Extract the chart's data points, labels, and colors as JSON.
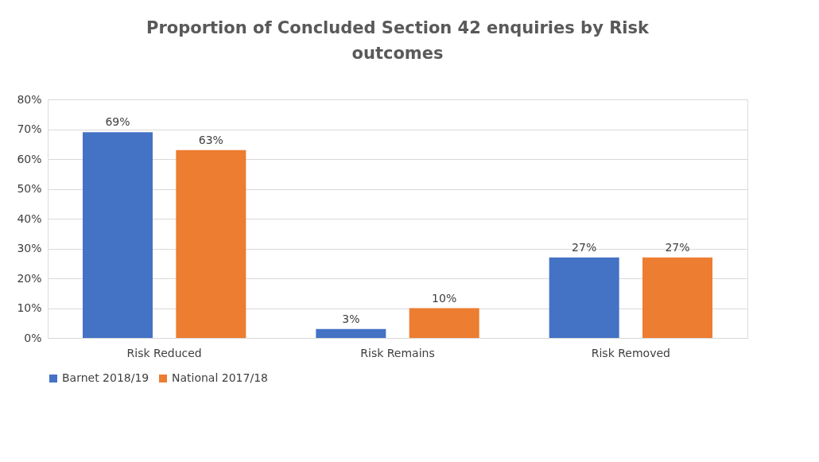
{
  "chart_data": {
    "type": "bar",
    "title": "Proportion of Concluded Section 42 enquiries by Risk outcomes",
    "categories": [
      "Risk Reduced",
      "Risk Remains",
      "Risk Removed"
    ],
    "series": [
      {
        "name": "Barnet 2018/19",
        "color": "#4472c4",
        "values": [
          69,
          3,
          27
        ],
        "value_labels": [
          "69%",
          "3%",
          "27%"
        ]
      },
      {
        "name": "National 2017/18",
        "color": "#ed7d31",
        "values": [
          63,
          10,
          27
        ],
        "value_labels": [
          "63%",
          "10%",
          "27%"
        ]
      }
    ],
    "ylim": [
      0,
      80
    ],
    "yticks": [
      {
        "value": 0,
        "label": "0%"
      },
      {
        "value": 10,
        "label": "10%"
      },
      {
        "value": 20,
        "label": "20%"
      },
      {
        "value": 30,
        "label": "30%"
      },
      {
        "value": 40,
        "label": "40%"
      },
      {
        "value": 50,
        "label": "50%"
      },
      {
        "value": 60,
        "label": "60%"
      },
      {
        "value": 70,
        "label": "70%"
      },
      {
        "value": 80,
        "label": "80%"
      }
    ],
    "grid": "y",
    "legend": "bottom"
  }
}
